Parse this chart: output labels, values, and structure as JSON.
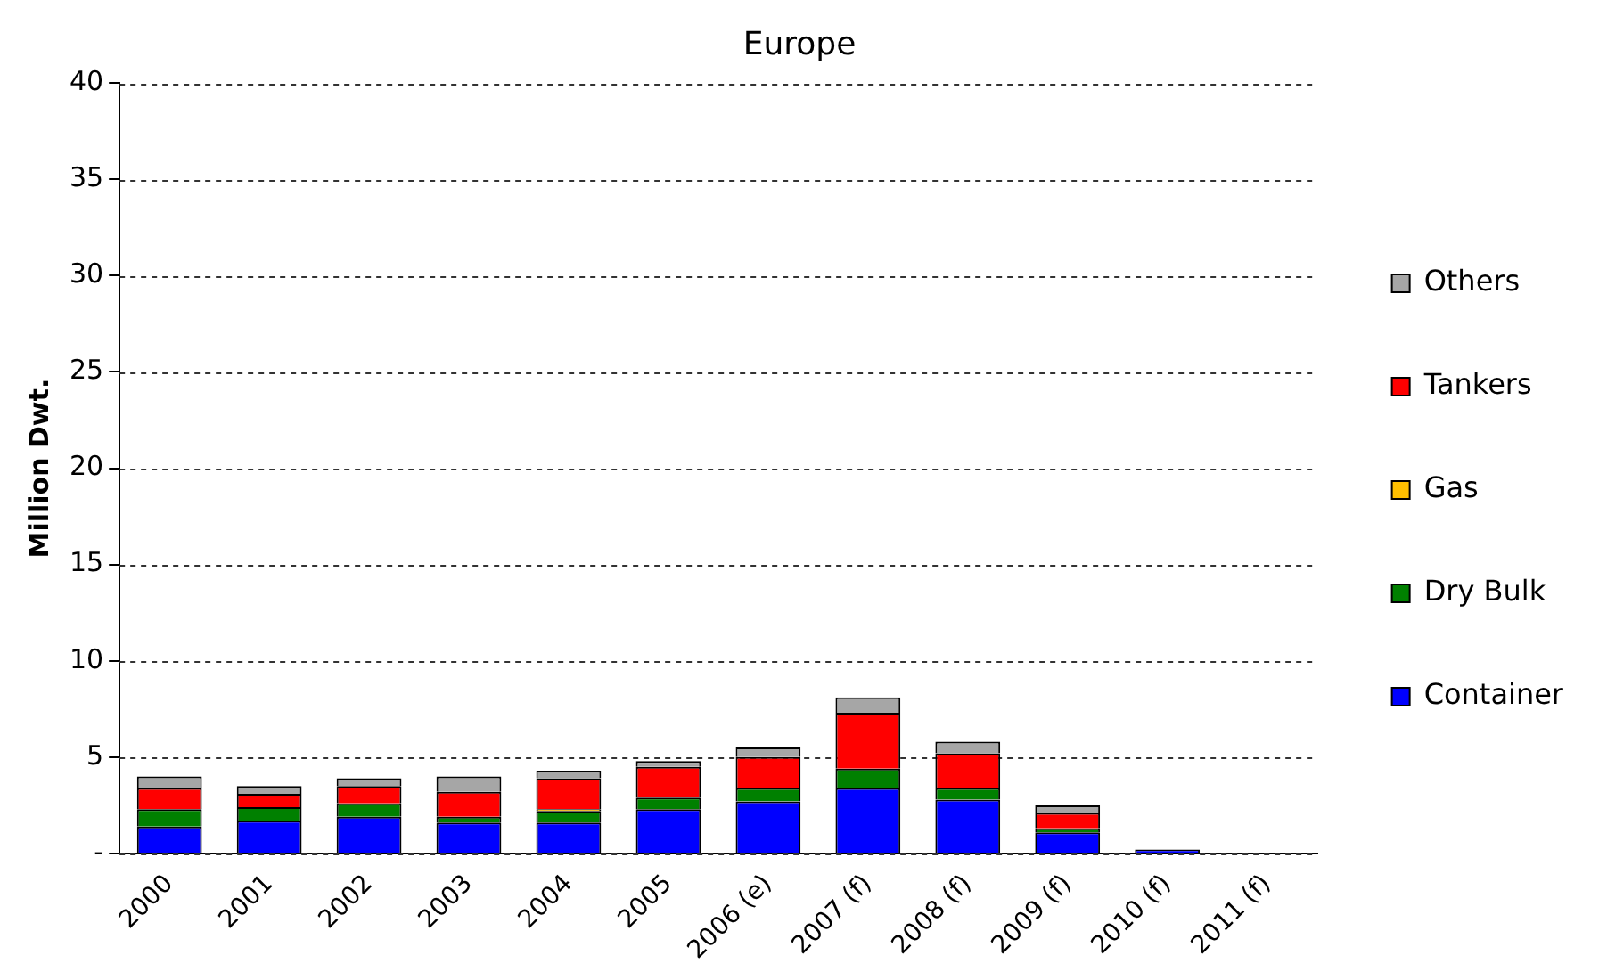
{
  "chart_data": {
    "type": "bar",
    "title": "Europe",
    "ylabel": "Million Dwt.",
    "stacked": true,
    "legend": "right",
    "grid": "y",
    "categories": [
      "2000",
      "2001",
      "2002",
      "2003",
      "2004",
      "2005",
      "2006 (e)",
      "2007 (f)",
      "2008 (f)",
      "2009 (f)",
      "2010 (f)",
      "2011 (f)"
    ],
    "ylim": [
      0,
      40
    ],
    "yticks": [
      {
        "value": 0,
        "label": "-"
      },
      5,
      10,
      15,
      20,
      25,
      30,
      35,
      40
    ],
    "series": [
      {
        "name": "Container",
        "color": "#0000ff",
        "values": [
          1.4,
          1.7,
          1.9,
          1.6,
          1.6,
          2.3,
          2.7,
          3.4,
          2.8,
          1.1,
          0.2,
          0
        ]
      },
      {
        "name": "Dry Bulk",
        "color": "#008000",
        "values": [
          0.9,
          0.7,
          0.7,
          0.3,
          0.6,
          0.6,
          0.7,
          1.0,
          0.6,
          0.2,
          0,
          0
        ]
      },
      {
        "name": "Gas",
        "color": "#ffc000",
        "values": [
          0,
          0,
          0,
          0,
          0.1,
          0,
          0,
          0,
          0,
          0,
          0,
          0
        ]
      },
      {
        "name": "Tankers",
        "color": "#ff0000",
        "values": [
          1.1,
          0.7,
          0.9,
          1.3,
          1.6,
          1.6,
          1.6,
          2.9,
          1.8,
          0.8,
          0,
          0
        ]
      },
      {
        "name": "Others",
        "color": "#a6a6a6",
        "values": [
          0.6,
          0.4,
          0.4,
          0.8,
          0.4,
          0.3,
          0.5,
          0.8,
          0.6,
          0.4,
          0,
          0
        ]
      }
    ]
  }
}
